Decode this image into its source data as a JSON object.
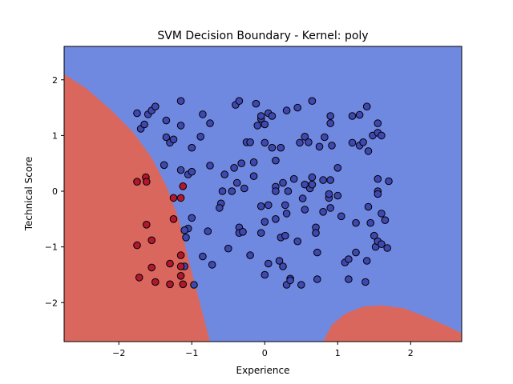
{
  "chart_data": {
    "type": "scatter",
    "title": "SVM Decision Boundary - Kernel: poly",
    "xlabel": "Experience",
    "ylabel": "Technical Score",
    "xlim": [
      -2.75,
      2.7
    ],
    "ylim": [
      -2.7,
      2.6
    ],
    "xticks": [
      -2,
      -1,
      0,
      1,
      2
    ],
    "yticks": [
      -2,
      -1,
      0,
      1,
      2
    ],
    "colors": {
      "region_positive": "#7089e0",
      "region_negative": "#d9675e",
      "point_positive": "#3f48b0",
      "point_negative": "#b3172d",
      "point_edge": "#000000"
    },
    "decision_regions": [
      {
        "class": "negative",
        "boundary": [
          [
            -2.75,
            2.1
          ],
          [
            -2.45,
            1.85
          ],
          [
            -2.1,
            1.45
          ],
          [
            -1.8,
            1.05
          ],
          [
            -1.55,
            0.6
          ],
          [
            -1.35,
            0.1
          ],
          [
            -1.18,
            -0.5
          ],
          [
            -1.05,
            -1.2
          ],
          [
            -0.9,
            -1.95
          ],
          [
            -0.75,
            -2.7
          ],
          [
            -2.75,
            -2.7
          ]
        ]
      },
      {
        "class": "negative",
        "boundary": [
          [
            0.8,
            -2.7
          ],
          [
            0.92,
            -2.4
          ],
          [
            1.1,
            -2.2
          ],
          [
            1.35,
            -2.07
          ],
          [
            1.6,
            -2.05
          ],
          [
            1.9,
            -2.1
          ],
          [
            2.2,
            -2.25
          ],
          [
            2.5,
            -2.42
          ],
          [
            2.7,
            -2.55
          ],
          [
            2.7,
            -2.7
          ]
        ]
      }
    ],
    "series": [
      {
        "class": "positive",
        "points": [
          [
            -1.75,
            1.4
          ],
          [
            -1.7,
            1.12
          ],
          [
            -1.65,
            1.2
          ],
          [
            -1.6,
            1.38
          ],
          [
            -1.55,
            1.45
          ],
          [
            -1.5,
            1.52
          ],
          [
            -1.35,
            1.27
          ],
          [
            -1.35,
            0.97
          ],
          [
            -1.3,
            0.87
          ],
          [
            -1.25,
            0.93
          ],
          [
            -1.15,
            1.62
          ],
          [
            -1.15,
            1.18
          ],
          [
            -1.38,
            0.47
          ],
          [
            -1.15,
            0.38
          ],
          [
            -1.05,
            0.3
          ],
          [
            -1.0,
            0.35
          ],
          [
            -1.0,
            0.78
          ],
          [
            -0.85,
            1.38
          ],
          [
            -0.88,
            0.98
          ],
          [
            -0.75,
            1.22
          ],
          [
            -0.75,
            0.46
          ],
          [
            -1.0,
            -0.48
          ],
          [
            -1.05,
            -0.67
          ],
          [
            -1.1,
            -0.7
          ],
          [
            -1.08,
            -0.83
          ],
          [
            -1.1,
            -1.35
          ],
          [
            -0.97,
            -1.68
          ],
          [
            -0.85,
            -1.17
          ],
          [
            -0.78,
            -0.72
          ],
          [
            -0.72,
            -1.32
          ],
          [
            -0.6,
            -0.22
          ],
          [
            -0.62,
            -0.3
          ],
          [
            -0.58,
            0.0
          ],
          [
            -0.55,
            0.3
          ],
          [
            -0.5,
            -1.03
          ],
          [
            -0.45,
            0.0
          ],
          [
            -0.42,
            0.42
          ],
          [
            -0.4,
            1.55
          ],
          [
            -0.35,
            1.62
          ],
          [
            -0.38,
            0.15
          ],
          [
            -0.32,
            0.5
          ],
          [
            -0.35,
            -0.65
          ],
          [
            -0.35,
            -0.75
          ],
          [
            -0.3,
            -0.73
          ],
          [
            -0.28,
            0.05
          ],
          [
            -0.25,
            0.88
          ],
          [
            -0.2,
            0.88
          ],
          [
            -0.2,
            -1.15
          ],
          [
            -0.15,
            0.27
          ],
          [
            -0.15,
            0.52
          ],
          [
            -0.12,
            1.57
          ],
          [
            -0.1,
            1.18
          ],
          [
            -0.05,
            1.3
          ],
          [
            -0.05,
            -0.27
          ],
          [
            -0.05,
            -0.75
          ],
          [
            -0.05,
            1.35
          ],
          [
            0.0,
            -1.5
          ],
          [
            0.0,
            1.2
          ],
          [
            0.0,
            0.87
          ],
          [
            0.05,
            1.4
          ],
          [
            0.05,
            -0.25
          ],
          [
            0.0,
            -0.55
          ],
          [
            0.05,
            -1.3
          ],
          [
            0.1,
            0.78
          ],
          [
            0.1,
            1.35
          ],
          [
            0.15,
            0.55
          ],
          [
            0.15,
            0.08
          ],
          [
            0.15,
            -0.0
          ],
          [
            0.15,
            -0.5
          ],
          [
            0.2,
            -1.25
          ],
          [
            0.22,
            0.78
          ],
          [
            0.22,
            -0.83
          ],
          [
            0.25,
            0.15
          ],
          [
            0.25,
            -1.35
          ],
          [
            0.28,
            -0.25
          ],
          [
            0.3,
            1.45
          ],
          [
            0.28,
            -0.8
          ],
          [
            0.3,
            -0.4
          ],
          [
            0.3,
            -1.68
          ],
          [
            0.32,
            0.0
          ],
          [
            0.35,
            -1.57
          ],
          [
            0.35,
            -1.6
          ],
          [
            0.4,
            0.22
          ],
          [
            0.45,
            1.5
          ],
          [
            0.45,
            -0.9
          ],
          [
            0.48,
            0.87
          ],
          [
            0.5,
            -1.68
          ],
          [
            0.52,
            -0.13
          ],
          [
            0.55,
            0.98
          ],
          [
            0.55,
            0.12
          ],
          [
            0.55,
            -0.33
          ],
          [
            0.6,
            0.88
          ],
          [
            0.62,
            0.05
          ],
          [
            0.65,
            1.62
          ],
          [
            0.65,
            0.25
          ],
          [
            0.65,
            0.12
          ],
          [
            0.7,
            -0.65
          ],
          [
            0.7,
            -0.75
          ],
          [
            0.72,
            -1.1
          ],
          [
            0.72,
            -1.58
          ],
          [
            0.75,
            0.8
          ],
          [
            0.8,
            0.2
          ],
          [
            0.8,
            -0.37
          ],
          [
            0.82,
            0.97
          ],
          [
            0.9,
            1.35
          ],
          [
            0.9,
            1.22
          ],
          [
            0.9,
            0.2
          ],
          [
            0.88,
            -0.12
          ],
          [
            0.9,
            -0.3
          ],
          [
            0.88,
            -0.05
          ],
          [
            0.92,
            0.82
          ],
          [
            1.0,
            0.42
          ],
          [
            1.0,
            -0.08
          ],
          [
            1.05,
            -0.45
          ],
          [
            1.1,
            -1.28
          ],
          [
            1.15,
            -1.22
          ],
          [
            1.15,
            -1.58
          ],
          [
            1.2,
            1.35
          ],
          [
            1.2,
            0.87
          ],
          [
            1.25,
            -0.57
          ],
          [
            1.25,
            -1.1
          ],
          [
            1.3,
            1.37
          ],
          [
            1.3,
            0.82
          ],
          [
            1.35,
            0.88
          ],
          [
            1.38,
            -1.63
          ],
          [
            1.4,
            1.52
          ],
          [
            1.4,
            -1.25
          ],
          [
            1.42,
            0.72
          ],
          [
            1.42,
            -0.28
          ],
          [
            1.45,
            -0.57
          ],
          [
            1.48,
            1.0
          ],
          [
            1.5,
            -0.8
          ],
          [
            1.52,
            -1.0
          ],
          [
            1.55,
            1.22
          ],
          [
            1.55,
            1.05
          ],
          [
            1.55,
            0.22
          ],
          [
            1.55,
            -0.0
          ],
          [
            1.55,
            -0.05
          ],
          [
            1.55,
            -0.9
          ],
          [
            1.6,
            -0.4
          ],
          [
            1.6,
            -0.95
          ],
          [
            1.65,
            -0.52
          ],
          [
            1.68,
            -1.02
          ],
          [
            1.7,
            0.18
          ],
          [
            1.6,
            1.0
          ]
        ]
      },
      {
        "class": "negative",
        "points": [
          [
            -1.75,
            0.17
          ],
          [
            -1.63,
            0.25
          ],
          [
            -1.62,
            0.17
          ],
          [
            -1.62,
            -0.6
          ],
          [
            -1.55,
            -0.88
          ],
          [
            -1.75,
            -0.97
          ],
          [
            -1.72,
            -1.55
          ],
          [
            -1.55,
            -1.37
          ],
          [
            -1.5,
            -1.63
          ],
          [
            -1.3,
            -1.3
          ],
          [
            -1.3,
            -1.67
          ],
          [
            -1.25,
            -0.12
          ],
          [
            -1.25,
            -0.5
          ],
          [
            -1.15,
            -0.12
          ],
          [
            -1.12,
            0.09
          ],
          [
            -1.15,
            -1.15
          ],
          [
            -1.15,
            -1.35
          ],
          [
            -1.15,
            -1.52
          ],
          [
            -1.12,
            -1.67
          ]
        ]
      }
    ]
  }
}
